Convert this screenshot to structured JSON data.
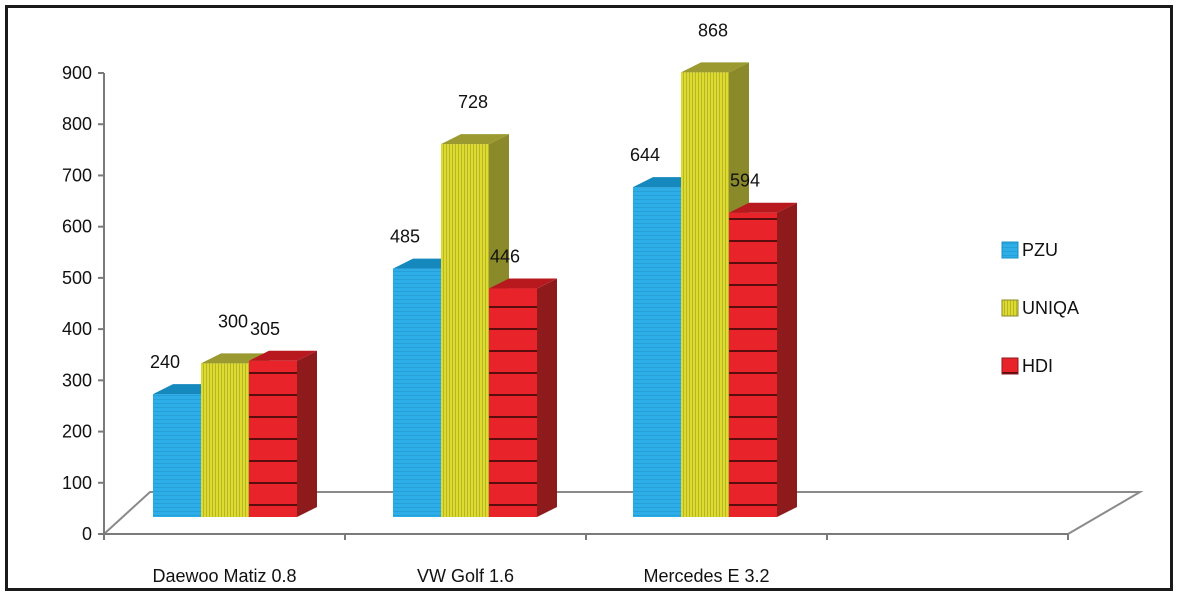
{
  "chart_data": {
    "type": "bar",
    "style": "3d-clustered-column",
    "categories": [
      "Daewoo Matiz 0.8",
      "VW Golf 1.6",
      "Mercedes E 3.2"
    ],
    "series": [
      {
        "name": "PZU",
        "values": [
          240,
          485,
          644
        ]
      },
      {
        "name": "UNIQA",
        "values": [
          300,
          728,
          868
        ]
      },
      {
        "name": "HDI",
        "values": [
          305,
          446,
          594
        ]
      }
    ],
    "ylim": [
      0,
      900
    ],
    "yticks": [
      "0",
      "100",
      "200",
      "300",
      "400",
      "500",
      "600",
      "700",
      "800",
      "900"
    ],
    "value_labels": [
      [
        "240",
        "485",
        "644"
      ],
      [
        "300",
        "728",
        "868"
      ],
      [
        "305",
        "446",
        "594"
      ]
    ],
    "legend_position": "right",
    "grid": false,
    "colors": {
      "PZU": {
        "front": "#2eaee8",
        "side": "#1a8fc4",
        "top": "#1588bd"
      },
      "UNIQA": {
        "front": "#d6d42a",
        "side": "#8a8a2a",
        "top": "#9a9a30"
      },
      "HDI": {
        "front": "#e8232a",
        "side": "#8e1a1c",
        "top": "#b8191f"
      }
    }
  }
}
